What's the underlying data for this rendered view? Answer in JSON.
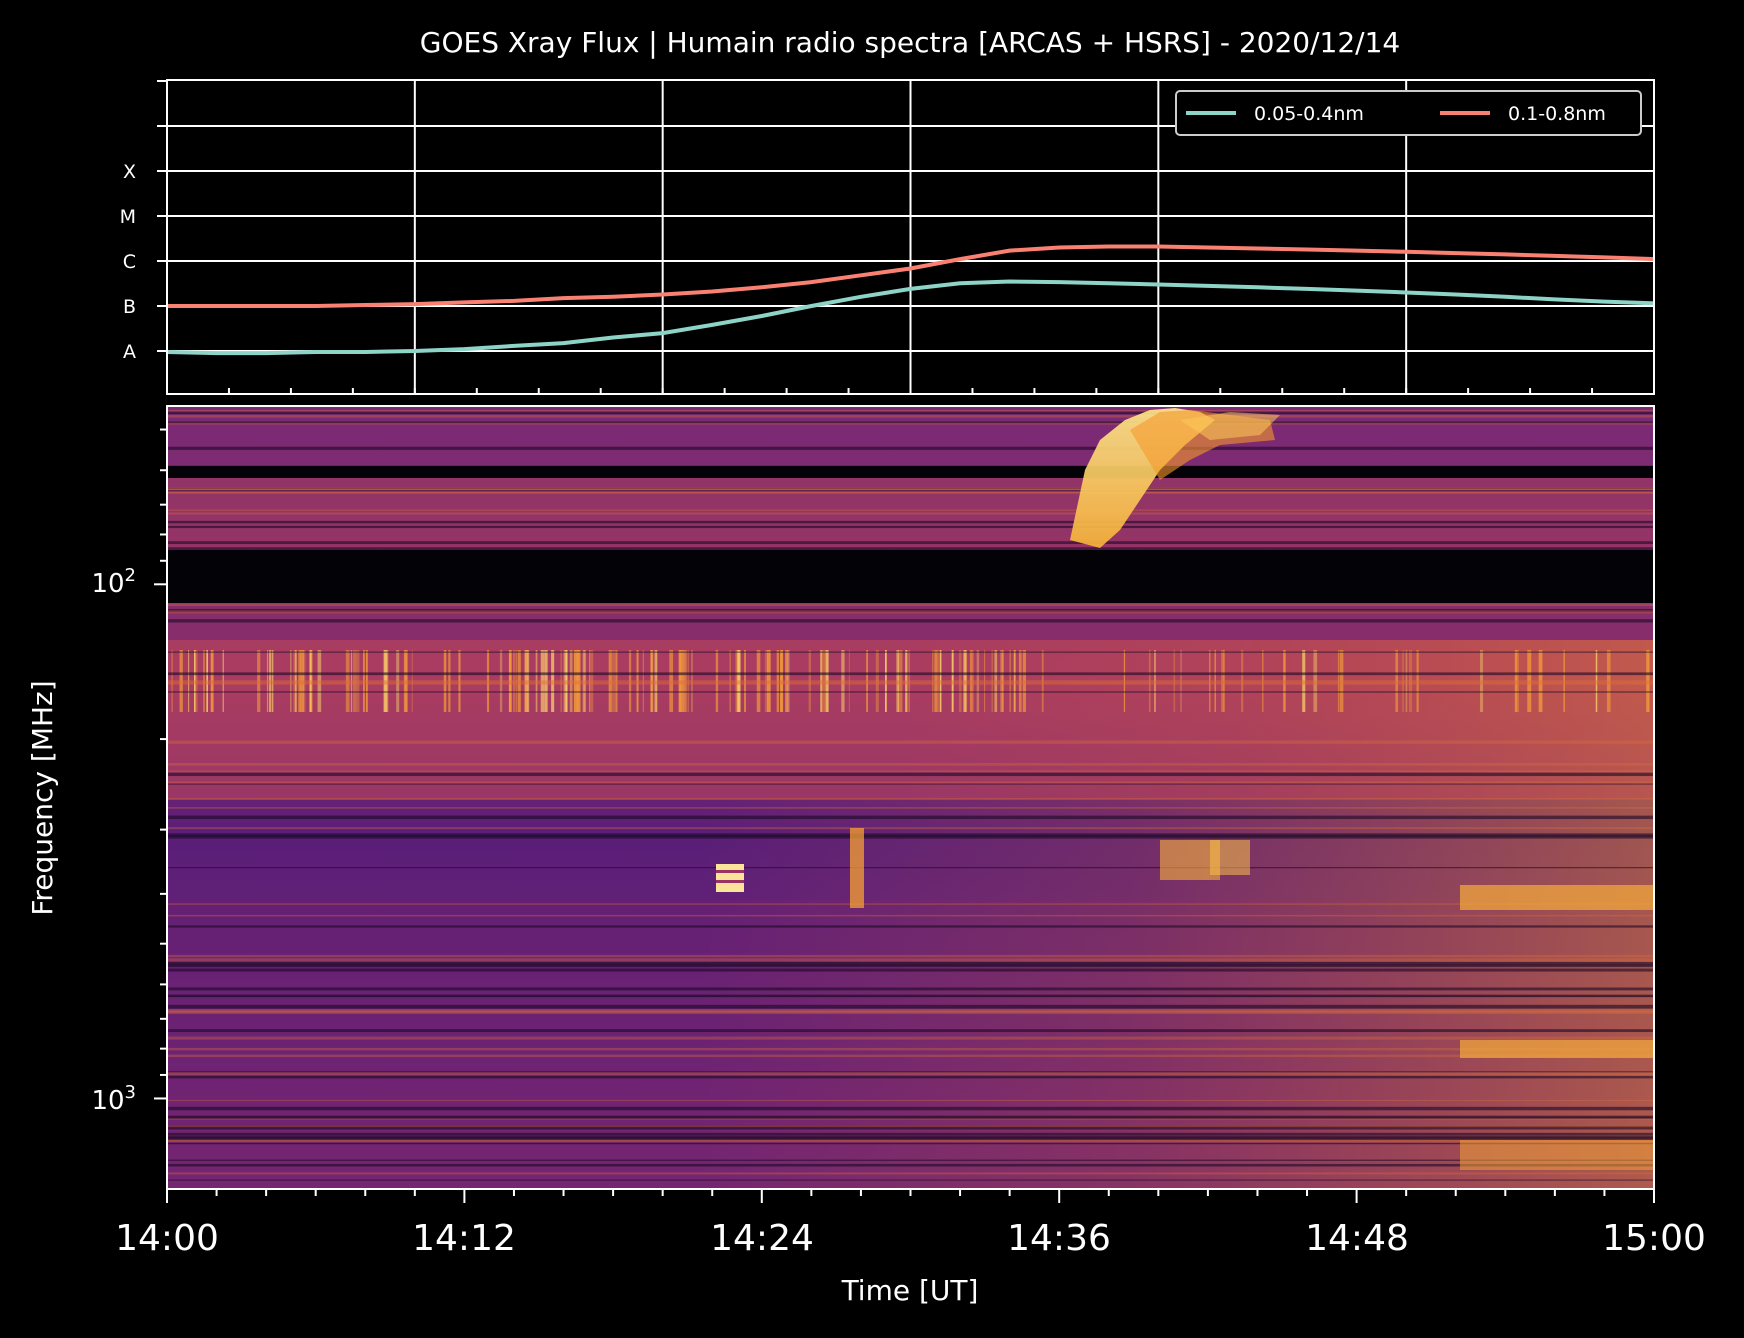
{
  "chart_data": [
    {
      "type": "line",
      "title": "GOES Xray Flux | Humain radio spectra [ARCAS + HSRS] - 2020/12/14",
      "y_scale": "log",
      "y_class_labels": [
        "A",
        "B",
        "C",
        "M",
        "X"
      ],
      "grid": true,
      "legend_position": "top-right",
      "x_time_min": [
        0,
        2,
        4,
        6,
        8,
        10,
        12,
        14,
        16,
        18,
        20,
        22,
        24,
        26,
        28,
        30,
        32,
        34,
        36,
        38,
        40,
        42,
        44,
        46,
        48,
        50,
        52,
        54,
        56,
        58,
        60
      ],
      "series": [
        {
          "name": "0.05-0.4nm",
          "color": "#8dd3c7",
          "flux_class": [
            "A0.95",
            "A0.9",
            "A0.9",
            "A0.95",
            "A0.95",
            "A1.0",
            "A1.1",
            "A1.3",
            "A1.5",
            "A2.0",
            "A2.5",
            "A3.8",
            "A6.0",
            "B1.0",
            "B1.6",
            "B2.4",
            "B3.2",
            "B3.5",
            "B3.4",
            "B3.2",
            "B3.0",
            "B2.8",
            "B2.6",
            "B2.4",
            "B2.2",
            "B2.0",
            "B1.8",
            "B1.6",
            "B1.4",
            "B1.25",
            "B1.15"
          ]
        },
        {
          "name": "0.1-0.8nm",
          "color": "#fa8072",
          "flux_class": [
            "B1.0",
            "B1.0",
            "B1.0",
            "B1.0",
            "B1.05",
            "B1.1",
            "B1.2",
            "B1.3",
            "B1.5",
            "B1.6",
            "B1.8",
            "B2.1",
            "B2.6",
            "B3.4",
            "B4.8",
            "B6.8",
            "C1.1",
            "C1.7",
            "C2.0",
            "C2.1",
            "C2.1",
            "C2.0",
            "C1.9",
            "C1.8",
            "C1.7",
            "C1.6",
            "C1.5",
            "C1.4",
            "C1.3",
            "C1.2",
            "C1.1"
          ]
        }
      ]
    },
    {
      "type": "heatmap",
      "xlabel": "Time [UT]",
      "ylabel": "Frequency [MHz]",
      "x_ticks": [
        "14:00",
        "14:12",
        "14:24",
        "14:36",
        "14:48",
        "15:00"
      ],
      "y_scale": "log",
      "y_inverted": true,
      "y_tick_labels": [
        {
          "base": "10",
          "exp": "2",
          "mhz": 100
        },
        {
          "base": "10",
          "exp": "3",
          "mhz": 1000
        }
      ],
      "y_range_mhz": [
        45,
        1500
      ],
      "colormap": "inferno",
      "data_gap_mhz": [
        87,
        106
      ],
      "events": [
        {
          "kind": "type II burst",
          "start_min": 36.5,
          "end_min": 44,
          "freq_mhz": [
            45,
            85
          ]
        },
        {
          "kind": "broadband emission",
          "start_min": 27,
          "end_min": 60,
          "freq_mhz": [
            250,
            1500
          ]
        }
      ]
    }
  ]
}
